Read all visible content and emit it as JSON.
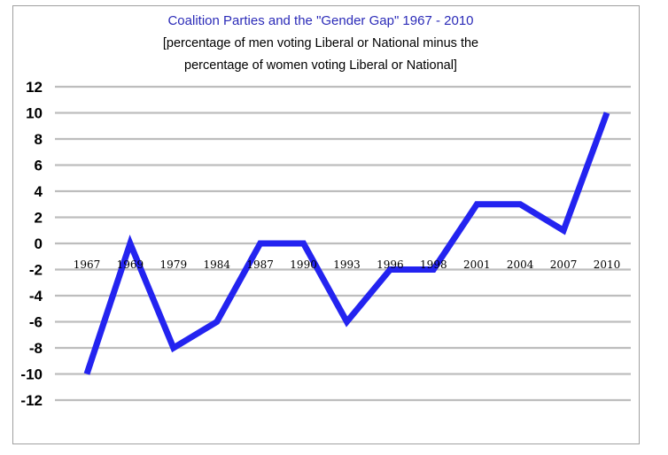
{
  "chart_data": {
    "type": "line",
    "title": "Coalition Parties and the \"Gender Gap\" 1967 - 2010",
    "subtitle_lines": [
      "[percentage  of men voting Liberal or National minus the",
      "percentage of women voting Liberal or National]"
    ],
    "categories": [
      "1967",
      "1969",
      "1979",
      "1984",
      "1987",
      "1990",
      "1993",
      "1996",
      "1998",
      "2001",
      "2004",
      "2007",
      "2010"
    ],
    "series": [
      {
        "values": [
          -10,
          0,
          -8,
          -6,
          0,
          0,
          -6,
          -2,
          -2,
          3,
          3,
          1,
          10
        ]
      }
    ],
    "y_ticks": [
      "12",
      "10",
      "8",
      "6",
      "4",
      "2",
      "0",
      "-2",
      "-4",
      "-6",
      "-8",
      "-10",
      "-12"
    ],
    "ylim": [
      -12,
      12
    ],
    "ystep": 2,
    "grid": true,
    "legend": "none",
    "colors": {
      "line": "#2323f0",
      "title": "#2b2bb8",
      "grid": "#bdbdbd",
      "text": "#000000"
    }
  }
}
